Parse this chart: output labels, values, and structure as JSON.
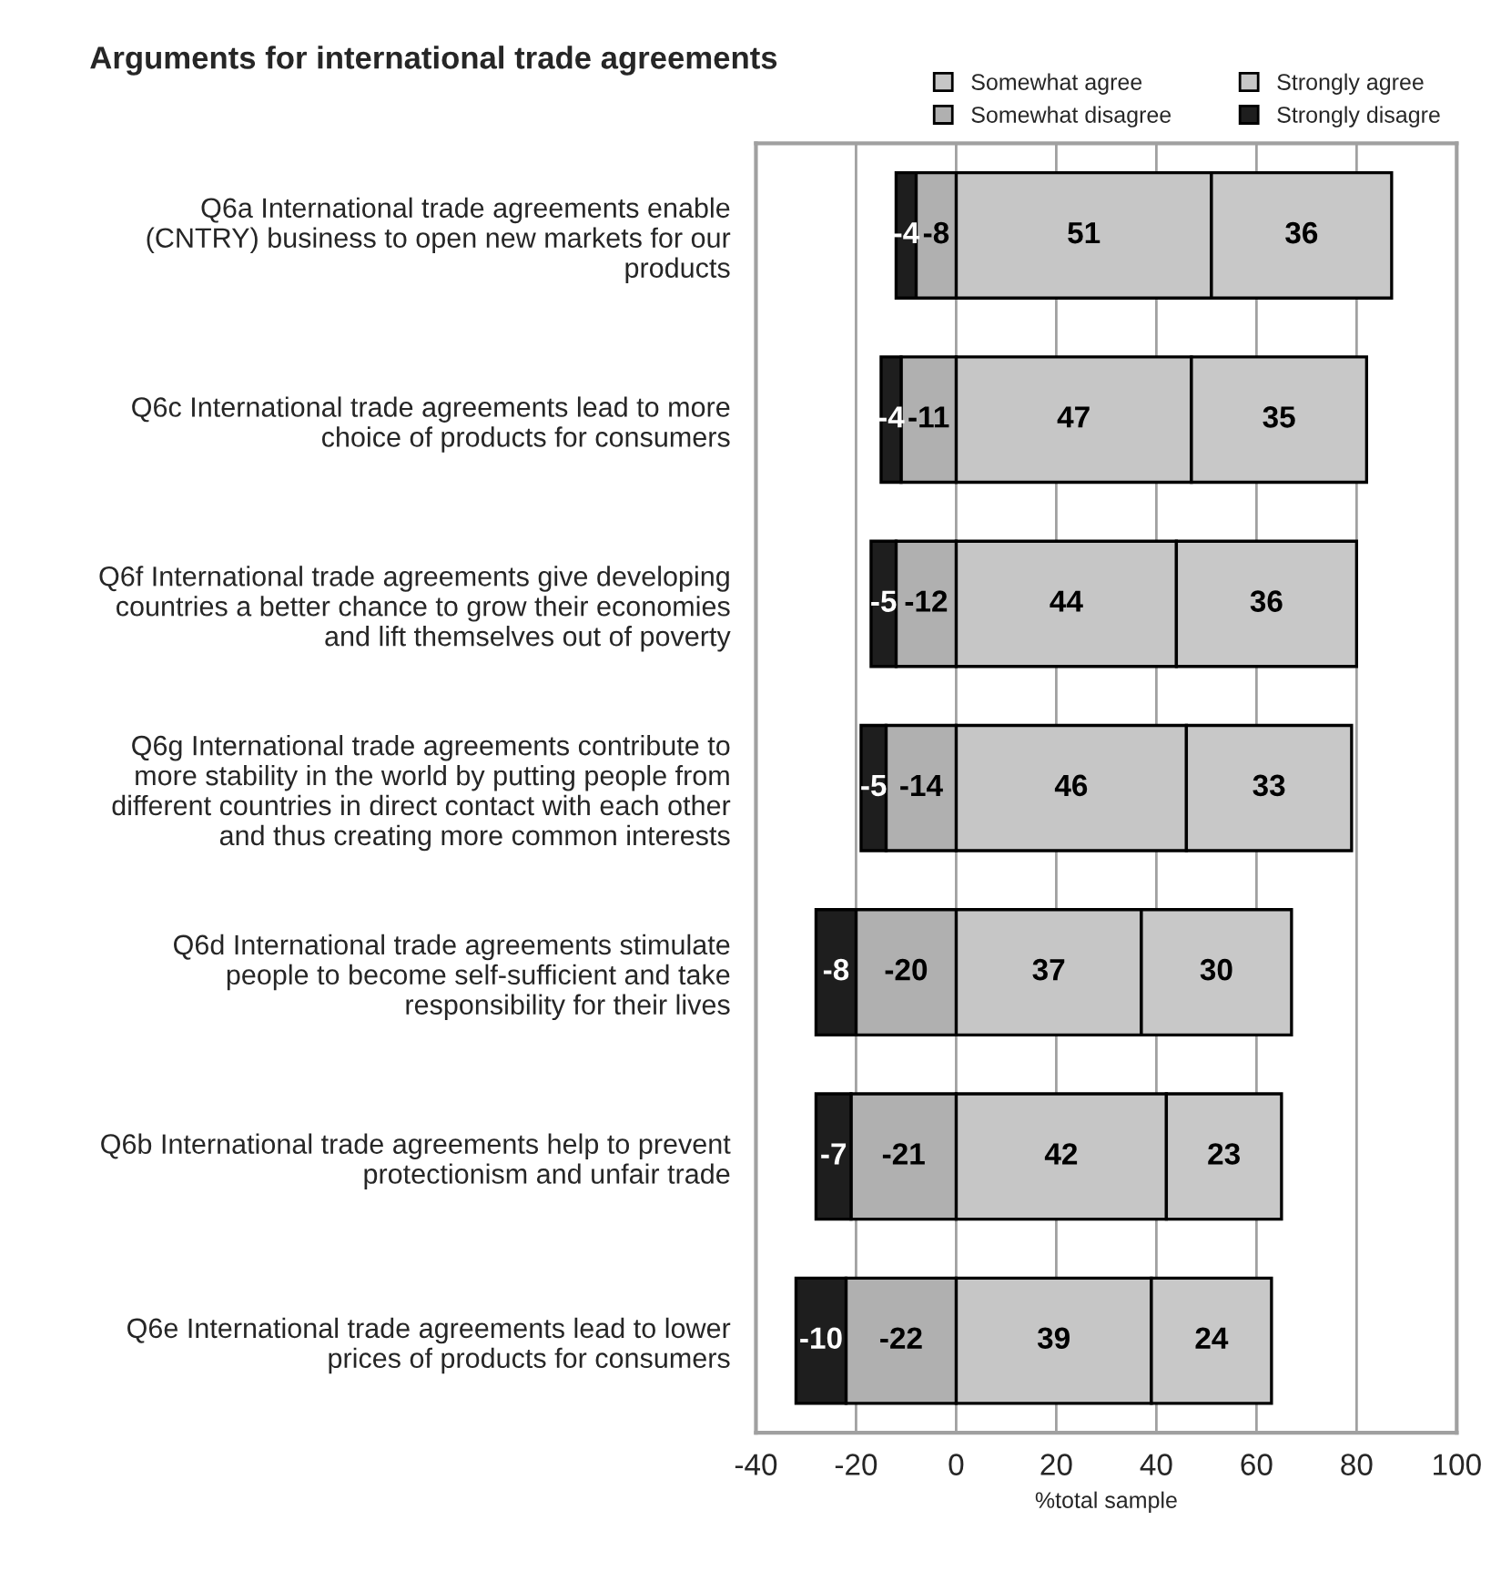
{
  "chart_data": {
    "type": "bar",
    "orientation": "horizontal",
    "stacked": true,
    "title": "Arguments for international trade agreements",
    "xlabel": "%total sample",
    "categories": [
      "Q6a International trade agreements enable\n(CNTRY) business to open new markets for our\nproducts",
      "Q6c International trade agreements lead to more\nchoice of products for consumers",
      "Q6f International trade agreements give developing\ncountries a better chance to grow their economies\nand lift themselves out of poverty",
      "Q6g International trade agreements contribute to\nmore stability in the world by putting people from\ndifferent countries in direct contact with each other\nand thus creating more common interests",
      "Q6d International trade agreements stimulate\npeople to become self-sufficient and take\nresponsibility for their lives",
      "Q6b International trade agreements help to prevent\nprotectionism and unfair trade",
      "Q6e International trade agreements lead to lower\nprices of products for consumers"
    ],
    "series": [
      {
        "name": "Somewhat agree",
        "color": "#c6c6c6",
        "values": [
          51,
          47,
          44,
          46,
          37,
          42,
          39
        ]
      },
      {
        "name": "Somewhat disagree",
        "color": "#b0b0b0",
        "values": [
          -8,
          -11,
          -12,
          -14,
          -20,
          -21,
          -22
        ]
      },
      {
        "name": "Strongly agree",
        "color": "#c8c8c8",
        "values": [
          36,
          35,
          36,
          33,
          30,
          23,
          24
        ]
      },
      {
        "name": "Strongly disagre",
        "color": "#1e1e1e",
        "values": [
          -4,
          -4,
          -5,
          -5,
          -8,
          -7,
          -10
        ]
      }
    ],
    "xlim": [
      -40,
      100
    ],
    "xticks": [
      -40,
      -20,
      0,
      20,
      40,
      60,
      80,
      100
    ],
    "grid": "x",
    "legend": "top right",
    "data_labels": true
  }
}
